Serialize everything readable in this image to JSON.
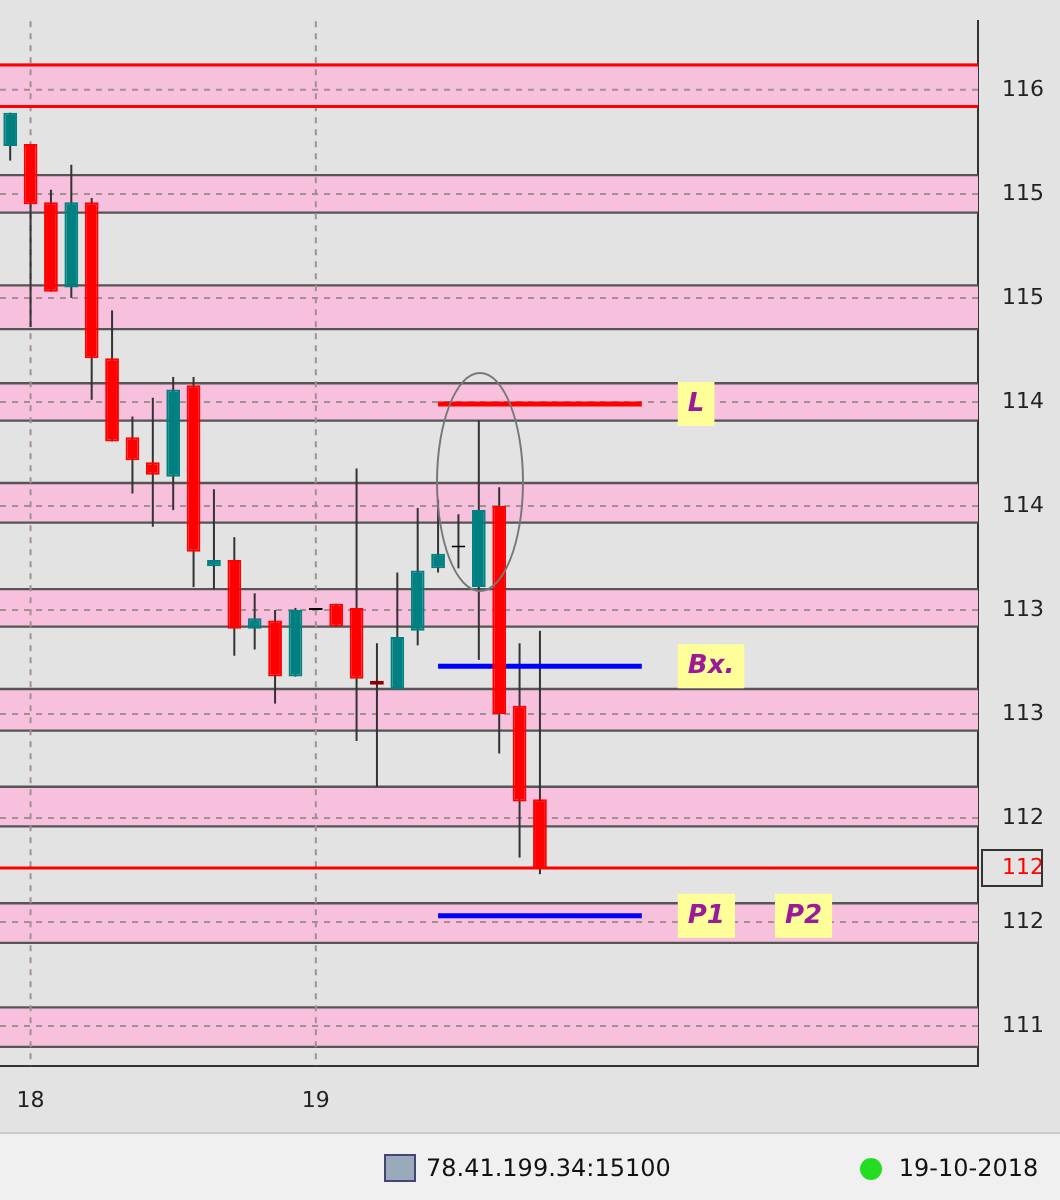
{
  "chart_data": {
    "type": "candlestick",
    "categories": [
      null,
      "18",
      null,
      null,
      null,
      null,
      null,
      null,
      null,
      null,
      null,
      null,
      null,
      null,
      null,
      "19",
      null,
      null,
      null,
      null,
      null,
      null,
      null,
      null,
      null,
      null,
      null,
      null,
      null,
      null,
      null,
      null,
      null,
      null,
      null,
      null,
      null,
      null,
      null,
      null,
      null,
      null,
      null,
      null,
      null,
      null,
      null,
      null
    ],
    "ohlc": [
      [
        115.73,
        115.89,
        115.66,
        115.89
      ],
      [
        115.74,
        115.74,
        114.86,
        115.45
      ],
      [
        115.46,
        115.52,
        115.03,
        115.03
      ],
      [
        115.05,
        115.64,
        115.0,
        115.46
      ],
      [
        115.46,
        115.48,
        114.51,
        114.71
      ],
      [
        114.71,
        114.94,
        114.31,
        114.31
      ],
      [
        114.33,
        114.43,
        114.06,
        114.22
      ],
      [
        114.21,
        114.52,
        113.9,
        114.15
      ],
      [
        114.14,
        114.62,
        113.98,
        114.56
      ],
      [
        114.58,
        114.62,
        113.61,
        113.78
      ],
      [
        113.71,
        114.08,
        113.6,
        113.74
      ],
      [
        113.74,
        113.85,
        113.28,
        113.41
      ],
      [
        113.41,
        113.58,
        113.31,
        113.46
      ],
      [
        113.45,
        113.5,
        113.05,
        113.18
      ],
      [
        113.18,
        113.51,
        113.18,
        113.5
      ],
      [
        113.5,
        113.5,
        113.5,
        113.5
      ],
      [
        113.53,
        113.53,
        113.42,
        113.42
      ],
      [
        113.51,
        114.18,
        112.87,
        113.17
      ],
      [
        113.16,
        113.34,
        112.65,
        113.14
      ],
      [
        113.12,
        113.68,
        113.12,
        113.37
      ],
      [
        113.4,
        113.99,
        113.33,
        113.69
      ],
      [
        113.7,
        114.03,
        113.68,
        113.77
      ],
      [
        113.8,
        113.96,
        113.7,
        113.8
      ],
      [
        113.61,
        114.41,
        113.26,
        113.98
      ],
      [
        114.0,
        114.09,
        112.81,
        113.0
      ],
      [
        113.04,
        113.34,
        112.31,
        112.58
      ],
      [
        112.59,
        113.4,
        112.23,
        112.26
      ],
      null,
      null,
      null,
      null,
      null,
      null,
      null,
      null,
      null,
      null,
      null,
      null,
      null,
      null,
      null,
      null,
      null,
      null,
      null,
      null,
      null
    ],
    "colors": [
      "#008080",
      "#ff0000",
      "#ff0000",
      "#008080",
      "#ff0000",
      "#ff0000",
      "#ff0000",
      "#ff0000",
      "#008080",
      "#ff0000",
      "#008080",
      "#ff0000",
      "#008080",
      "#ff0000",
      "#008080",
      "#000000",
      "#ff0000",
      "#ff0000",
      "#8b0000",
      "#008080",
      "#008080",
      "#008080",
      "#000000",
      "#008080",
      "#ff0000",
      "#ff0000",
      "#ff0000",
      null,
      null,
      null,
      null,
      null,
      null,
      null,
      null,
      null,
      null,
      null,
      null,
      null,
      null,
      null,
      null,
      null,
      null,
      null,
      null,
      null
    ],
    "ylim": [
      111.31,
      116.33
    ],
    "yticks": [
      {
        "value": 116,
        "label": "116"
      },
      {
        "value": 115.5,
        "label": "115"
      },
      {
        "value": 115,
        "label": "115"
      },
      {
        "value": 114.5,
        "label": "114"
      },
      {
        "value": 114,
        "label": "114"
      },
      {
        "value": 113.5,
        "label": "113"
      },
      {
        "value": 113,
        "label": "113"
      },
      {
        "value": 112.5,
        "label": "112"
      },
      {
        "value": 112.26,
        "label": "112"
      },
      {
        "value": 112,
        "label": "112"
      },
      {
        "value": 111.5,
        "label": "111"
      }
    ],
    "grid": true,
    "bands": [
      {
        "axis": "y",
        "from": 115.92,
        "to": 116.12,
        "color": "#f7c1de"
      },
      {
        "axis": "y",
        "from": 115.41,
        "to": 115.59,
        "color": "#f7c1de"
      },
      {
        "axis": "y",
        "from": 114.85,
        "to": 115.06,
        "color": "#f7c1de"
      },
      {
        "axis": "y",
        "from": 114.41,
        "to": 114.59,
        "color": "#f7c1de"
      },
      {
        "axis": "y",
        "from": 113.92,
        "to": 114.11,
        "color": "#f7c1de"
      },
      {
        "axis": "y",
        "from": 113.42,
        "to": 113.6,
        "color": "#f7c1de"
      },
      {
        "axis": "y",
        "from": 112.92,
        "to": 113.12,
        "color": "#f7c1de"
      },
      {
        "axis": "y",
        "from": 112.46,
        "to": 112.65,
        "color": "#f7c1de"
      },
      {
        "axis": "y",
        "from": 111.9,
        "to": 112.09,
        "color": "#f7c1de"
      },
      {
        "axis": "y",
        "from": 111.4,
        "to": 111.59,
        "color": "#f7c1de"
      }
    ],
    "ref_lines": [
      {
        "axis": "y",
        "value": 116.12,
        "color": "#ff0000"
      },
      {
        "axis": "y",
        "value": 115.92,
        "color": "#ff0000"
      },
      {
        "axis": "y",
        "value": 112.26,
        "color": "#ff0000"
      },
      {
        "axis": "y",
        "value": 114.49,
        "label": "L",
        "color": "#ff0000"
      },
      {
        "axis": "y",
        "value": 113.23,
        "label": "Bx.",
        "color": "#0000ff"
      },
      {
        "axis": "y",
        "value": 112.03,
        "label": "P1",
        "color": "#0000ff"
      }
    ],
    "annotations": [
      {
        "text": "P2",
        "y": 112.03
      },
      "78.41.199.34:15100",
      "19-10-2018"
    ]
  }
}
